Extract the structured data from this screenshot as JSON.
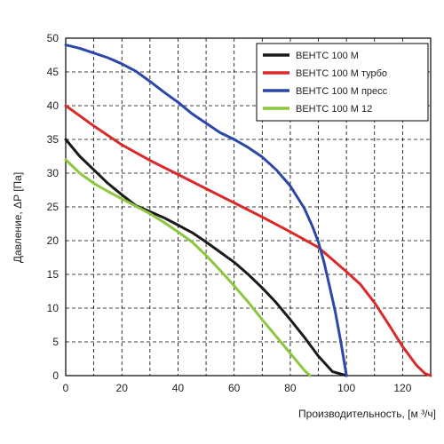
{
  "chart_data": {
    "type": "line",
    "title": "",
    "xlabel": "Производительность, [м ³/ч]",
    "ylabel": "Давление, ΔP [Па]",
    "xlim": [
      0,
      130
    ],
    "ylim": [
      0,
      50
    ],
    "xticks": [
      "0",
      "20",
      "40",
      "60",
      "80",
      "100",
      "120"
    ],
    "yticks": [
      "0",
      "5",
      "10",
      "15",
      "20",
      "25",
      "30",
      "35",
      "40",
      "45",
      "50"
    ],
    "grid": true,
    "legend_position": "top-right",
    "series": [
      {
        "name": "ВЕНТС 100 М",
        "color": "#1a1a1a",
        "x": [
          0,
          5,
          10,
          15,
          20,
          25,
          30,
          35,
          40,
          45,
          50,
          55,
          60,
          65,
          70,
          75,
          80,
          85,
          90,
          95,
          100
        ],
        "y": [
          35,
          32.5,
          30.5,
          28.5,
          26.8,
          25.2,
          24.3,
          23.4,
          22.3,
          21.2,
          19.8,
          18.3,
          16.8,
          15.0,
          13.0,
          10.8,
          8.3,
          5.7,
          2.9,
          0.6,
          0
        ]
      },
      {
        "name": "ВЕНТС 100 М турбо",
        "color": "#d92a2a",
        "x": [
          0,
          10,
          20,
          30,
          40,
          50,
          60,
          70,
          80,
          90,
          100,
          105,
          110,
          115,
          120,
          125,
          128,
          130
        ],
        "y": [
          40,
          37,
          34.2,
          31.9,
          29.8,
          27.7,
          25.6,
          23.5,
          21.3,
          19,
          15.4,
          13.5,
          10.8,
          7.6,
          4.3,
          1.5,
          0.3,
          0
        ]
      },
      {
        "name": "ВЕНТС 100 М пресс",
        "color": "#2b47a8",
        "x": [
          0,
          5,
          10,
          15,
          20,
          25,
          30,
          35,
          40,
          45,
          50,
          55,
          60,
          65,
          70,
          75,
          80,
          85,
          88,
          90,
          92,
          94,
          96,
          98,
          100
        ],
        "y": [
          49,
          48.5,
          47.8,
          47.1,
          46.2,
          45.1,
          43.6,
          42,
          40.5,
          38.8,
          37.4,
          36,
          35,
          33.8,
          32.4,
          30.5,
          28.1,
          24.8,
          22,
          19.8,
          16.8,
          13.2,
          9.5,
          5.0,
          0
        ]
      },
      {
        "name": "ВЕНТС 100 М 12",
        "color": "#8dc63f",
        "x": [
          0,
          5,
          10,
          15,
          20,
          25,
          30,
          35,
          40,
          45,
          50,
          55,
          60,
          65,
          70,
          75,
          80,
          85,
          87
        ],
        "y": [
          32,
          30,
          28.5,
          27.3,
          26.2,
          25.1,
          24,
          22.7,
          21.3,
          19.8,
          17.8,
          15.6,
          13.3,
          10.9,
          8.3,
          5.8,
          3.3,
          0.8,
          0
        ]
      }
    ]
  }
}
